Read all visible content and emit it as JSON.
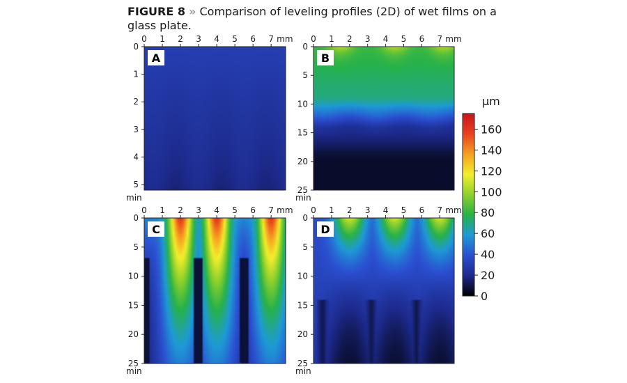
{
  "caption": {
    "figure_label": "FIGURE 8",
    "separator": "»",
    "text": "Comparison of leveling profiles (2D) of wet films on a glass plate."
  },
  "chart_data": [
    {
      "type": "heatmap",
      "panel": "A",
      "x_ticks": [
        "0",
        "1",
        "2",
        "3",
        "4",
        "5",
        "6",
        "7"
      ],
      "x_unit": "mm",
      "y_ticks": [
        "0",
        "1",
        "2",
        "3",
        "4",
        "5"
      ],
      "y_unit": "min",
      "xlim": [
        0,
        7.8
      ],
      "ylim": [
        0,
        5.2
      ],
      "profile": {
        "base_um": 14,
        "amplitude_um": 2,
        "period_mm": 2.5,
        "decay": "slow darkening toward bottom"
      }
    },
    {
      "type": "heatmap",
      "panel": "B",
      "x_ticks": [
        "0",
        "1",
        "2",
        "3",
        "4",
        "5",
        "6",
        "7"
      ],
      "x_unit": "mm",
      "y_ticks": [
        "0",
        "5",
        "10",
        "15",
        "20",
        "25"
      ],
      "y_unit": "min",
      "xlim": [
        0,
        7.8
      ],
      "ylim": [
        0,
        25
      ],
      "profile": {
        "top_um": 75,
        "peaks_um": 95,
        "peak_x_mm": [
          1.5,
          4.5,
          7.2
        ],
        "drop_time_min": 12,
        "bottom_um": 6
      }
    },
    {
      "type": "heatmap",
      "panel": "C",
      "x_ticks": [
        "0",
        "1",
        "2",
        "3",
        "4",
        "5",
        "6",
        "7"
      ],
      "x_unit": "mm",
      "y_ticks": [
        "0",
        "5",
        "10",
        "15",
        "20",
        "25"
      ],
      "y_unit": "min",
      "xlim": [
        0,
        7.8
      ],
      "ylim": [
        0,
        25
      ],
      "profile": {
        "peaks_um": 160,
        "peak_x_mm": [
          2.0,
          4.0,
          7.0
        ],
        "valleys_um": 5,
        "valley_x_mm": [
          0.0,
          3.0,
          5.5
        ]
      }
    },
    {
      "type": "heatmap",
      "panel": "D",
      "x_ticks": [
        "0",
        "1",
        "2",
        "3",
        "4",
        "5",
        "6",
        "7"
      ],
      "x_unit": "mm",
      "y_ticks": [
        "0",
        "5",
        "10",
        "15",
        "20",
        "25"
      ],
      "y_unit": "min",
      "xlim": [
        0,
        7.8
      ],
      "ylim": [
        0,
        25
      ],
      "profile": {
        "peaks_um": 110,
        "peak_x_mm": [
          2.0,
          4.5,
          7.0
        ],
        "valleys_um": 10,
        "valley_x_mm": [
          0.5,
          3.2,
          5.7
        ]
      }
    },
    {
      "type": "colorbar",
      "unit": "µm",
      "ticks": [
        "0",
        "20",
        "40",
        "60",
        "80",
        "100",
        "120",
        "140",
        "160"
      ],
      "range": [
        0,
        175
      ],
      "colors": [
        "#000000",
        "#1d2a8c",
        "#2b4fd0",
        "#1e9ad6",
        "#27b24a",
        "#8fd12c",
        "#f2ef2c",
        "#f5a020",
        "#e8421c",
        "#c8141c"
      ]
    }
  ]
}
